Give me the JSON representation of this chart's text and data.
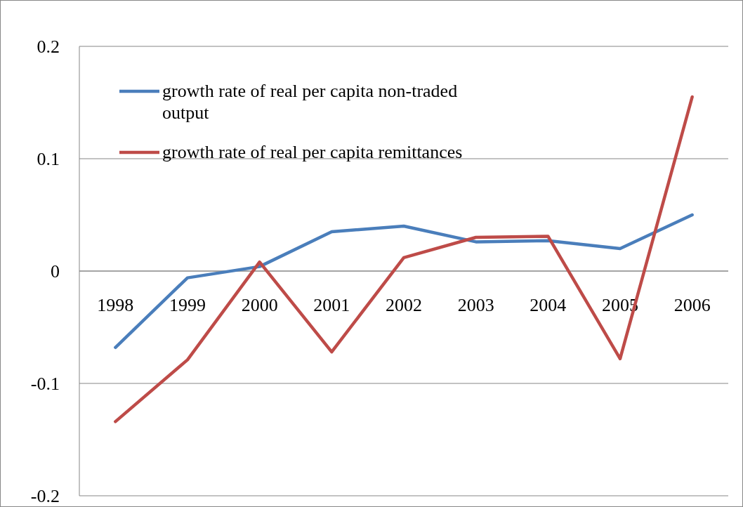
{
  "chart_data": {
    "type": "line",
    "categories": [
      "1998",
      "1999",
      "2000",
      "2001",
      "2002",
      "2003",
      "2004",
      "2005",
      "2006"
    ],
    "series": [
      {
        "name": "growth rate of real per capita non-traded output",
        "color": "#4a7ebb",
        "values": [
          -0.068,
          -0.006,
          0.004,
          0.035,
          0.04,
          0.026,
          0.027,
          0.02,
          0.05
        ]
      },
      {
        "name": "growth rate of real per capita remittances",
        "color": "#be4b48",
        "values": [
          -0.134,
          -0.079,
          0.008,
          -0.072,
          0.012,
          0.03,
          0.031,
          -0.078,
          0.155
        ]
      }
    ],
    "ylim": [
      -0.2,
      0.2
    ],
    "yticks": [
      -0.2,
      -0.1,
      0,
      0.1,
      0.2
    ],
    "grid": "y",
    "legend": "top left",
    "marker": "none",
    "line_style": "solid"
  }
}
